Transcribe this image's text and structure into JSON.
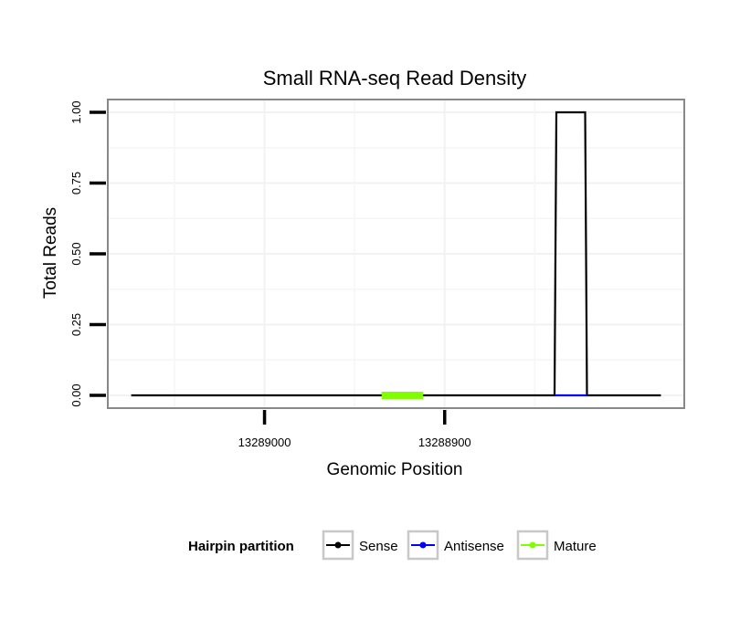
{
  "chart_data": {
    "type": "line",
    "title": "Small RNA-seq Read Density",
    "xlabel": "Genomic Position",
    "ylabel": "Total Reads",
    "x_reversed": true,
    "xlim": [
      13289087,
      13288767
    ],
    "ylim": [
      -0.045,
      1.045
    ],
    "x_ticks": [
      {
        "value": 13289000,
        "label": "13289000"
      },
      {
        "value": 13288900,
        "label": "13288900"
      }
    ],
    "y_ticks": [
      {
        "value": 0.0,
        "label": "0.00"
      },
      {
        "value": 0.25,
        "label": "0.25"
      },
      {
        "value": 0.5,
        "label": "0.50"
      },
      {
        "value": 0.75,
        "label": "0.75"
      },
      {
        "value": 1.0,
        "label": "1.00"
      }
    ],
    "grid": true,
    "legend": {
      "title": "Hairpin partition",
      "position": "bottom",
      "entries": [
        "Sense",
        "Antisense",
        "Mature"
      ]
    },
    "series": [
      {
        "name": "Sense",
        "color": "#000000",
        "x": [
          13289074,
          13288839,
          13288838,
          13288822,
          13288821,
          13288780
        ],
        "y": [
          0,
          0,
          1,
          1,
          0,
          0
        ]
      },
      {
        "name": "Antisense",
        "color": "#0000ff",
        "x": [
          13288839,
          13288821
        ],
        "y": [
          0,
          0
        ]
      },
      {
        "name": "Mature",
        "color": "#7fff00",
        "x": [
          13288935,
          13288912
        ],
        "y": [
          0,
          0
        ]
      }
    ]
  }
}
